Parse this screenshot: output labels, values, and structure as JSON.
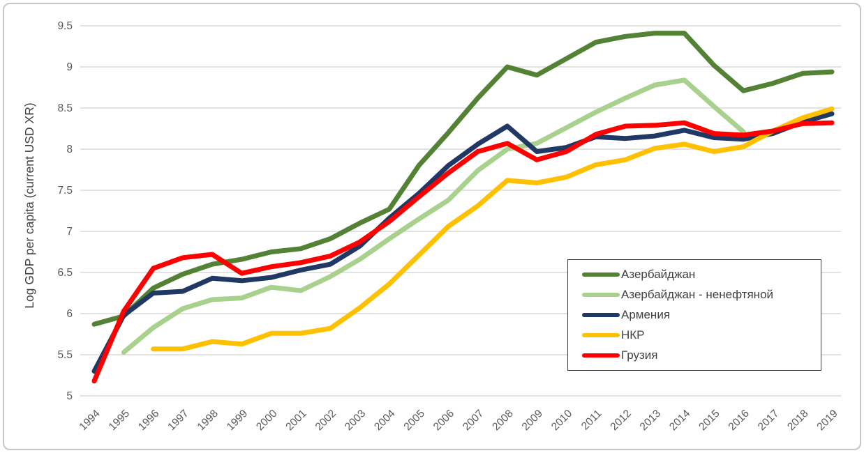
{
  "chart_data": {
    "type": "line",
    "title": "",
    "xlabel": "",
    "ylabel": "Log GDP per capita (current USD XR)",
    "ylim": [
      5,
      9.5
    ],
    "y_tick_step": 0.5,
    "grid": true,
    "legend_position": "inside-right",
    "x_categories": [
      1994,
      1995,
      1996,
      1997,
      1998,
      1999,
      2000,
      2001,
      2002,
      2003,
      2004,
      2005,
      2006,
      2007,
      2008,
      2009,
      2010,
      2011,
      2012,
      2013,
      2014,
      2015,
      2016,
      2017,
      2018,
      2019
    ],
    "series": [
      {
        "key": "azerbaijan",
        "name": "Азербайджан",
        "color": "#548235",
        "values": [
          5.87,
          5.97,
          6.31,
          6.48,
          6.6,
          6.66,
          6.75,
          6.79,
          6.91,
          7.1,
          7.27,
          7.8,
          8.2,
          8.62,
          9.0,
          8.9,
          9.1,
          9.3,
          9.37,
          9.41,
          9.41,
          9.02,
          8.71,
          8.8,
          8.92,
          8.94
        ]
      },
      {
        "key": "azerbaijan-nonoil",
        "name": "Азербайджан - ненефтяной",
        "color": "#A9D18E",
        "values": [
          null,
          5.53,
          5.83,
          6.06,
          6.17,
          6.19,
          6.32,
          6.28,
          6.45,
          6.66,
          6.91,
          7.15,
          7.38,
          7.74,
          8.0,
          8.07,
          8.26,
          8.45,
          8.62,
          8.78,
          8.84,
          8.52,
          8.21,
          null,
          null,
          null
        ]
      },
      {
        "key": "armenia",
        "name": "Армения",
        "color": "#1F3864",
        "values": [
          5.3,
          5.98,
          6.25,
          6.27,
          6.43,
          6.4,
          6.44,
          6.53,
          6.6,
          6.82,
          7.16,
          7.46,
          7.8,
          8.06,
          8.28,
          7.97,
          8.02,
          8.15,
          8.13,
          8.16,
          8.23,
          8.14,
          8.12,
          8.19,
          8.33,
          8.43
        ]
      },
      {
        "key": "nkr",
        "name": "НКР",
        "color": "#FFC000",
        "values": [
          null,
          null,
          5.57,
          5.57,
          5.66,
          5.63,
          5.76,
          5.76,
          5.82,
          6.07,
          6.36,
          6.71,
          7.06,
          7.31,
          7.62,
          7.59,
          7.66,
          7.81,
          7.87,
          8.01,
          8.06,
          7.97,
          8.03,
          8.22,
          8.38,
          8.49
        ]
      },
      {
        "key": "georgia",
        "name": "Грузия",
        "color": "#FF0000",
        "values": [
          5.18,
          6.03,
          6.55,
          6.68,
          6.72,
          6.49,
          6.57,
          6.62,
          6.7,
          6.87,
          7.12,
          7.42,
          7.71,
          7.97,
          8.07,
          7.87,
          7.97,
          8.18,
          8.28,
          8.29,
          8.32,
          8.19,
          8.17,
          8.22,
          8.31,
          8.32
        ]
      }
    ],
    "style_colors": {
      "gridline": "#D9D9D9",
      "tick_label": "#595959",
      "axis_title": "#404040"
    }
  }
}
